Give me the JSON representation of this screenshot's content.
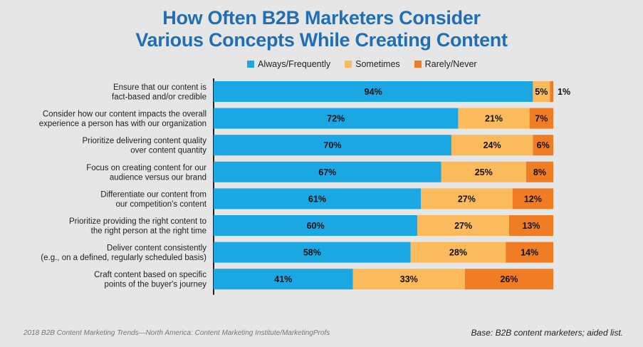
{
  "title_line1": "How Often B2B Marketers Consider",
  "title_line2": "Various Concepts While Creating Content",
  "legend": [
    {
      "label": "Always/Frequently",
      "color": "#1aa7e4"
    },
    {
      "label": "Sometimes",
      "color": "#fbbb5c"
    },
    {
      "label": "Rarely/Never",
      "color": "#f07c24"
    }
  ],
  "source": "2018 B2B Content Marketing Trends—North America: Content Marketing Institute/MarketingProfs",
  "base_note": "Base: B2B content marketers; aided list.",
  "chart_data": {
    "type": "bar",
    "orientation": "horizontal",
    "stacked": true,
    "xlim": [
      0,
      100
    ],
    "categories": [
      [
        "Ensure that our content is",
        "fact-based and/or credible"
      ],
      [
        "Consider how our content impacts the overall",
        "experience a person has with our organization"
      ],
      [
        "Prioritize delivering content quality",
        "over content quantity"
      ],
      [
        "Focus on creating content for our",
        "audience versus our brand"
      ],
      [
        "Differentiate our content from",
        "our competition's content"
      ],
      [
        "Prioritize providing the right content to",
        "the right person at the right time"
      ],
      [
        "Deliver content consistently",
        "(e.g., on a defined, regularly scheduled basis)"
      ],
      [
        "Craft content based on specific",
        "points of the buyer's journey"
      ]
    ],
    "series": [
      {
        "name": "Always/Frequently",
        "color": "#1aa7e4",
        "values": [
          94,
          72,
          70,
          67,
          61,
          60,
          58,
          41
        ]
      },
      {
        "name": "Sometimes",
        "color": "#fbbb5c",
        "values": [
          5,
          21,
          24,
          25,
          27,
          27,
          28,
          33
        ]
      },
      {
        "name": "Rarely/Never",
        "color": "#f07c24",
        "values": [
          1,
          7,
          6,
          8,
          12,
          13,
          14,
          26
        ]
      }
    ],
    "value_suffix": "%",
    "legend_position": "top"
  }
}
